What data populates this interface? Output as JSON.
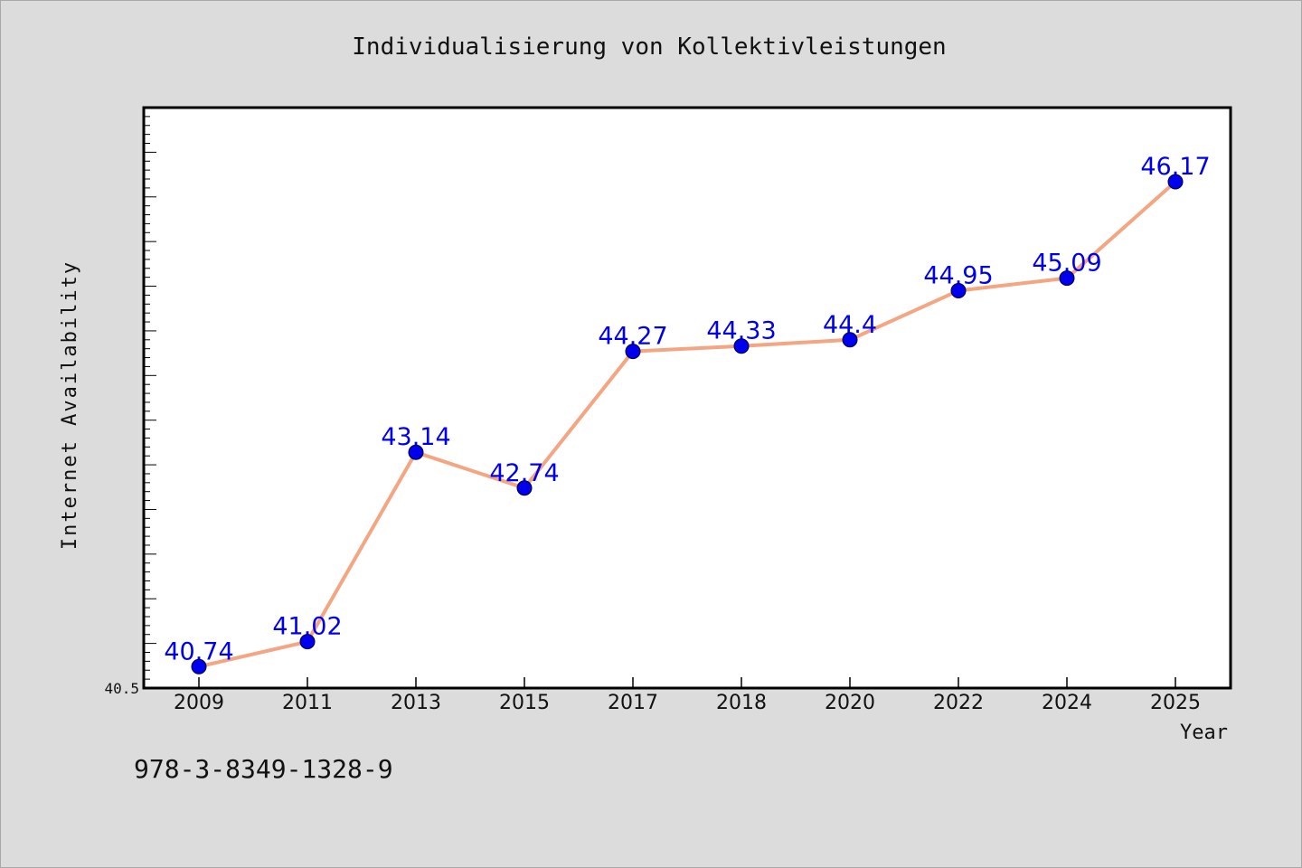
{
  "chart_data": {
    "type": "line",
    "title": "Individualisierung von Kollektivleistungen",
    "xlabel": "Year",
    "ylabel": "Internet Availability",
    "categories": [
      "2009",
      "2011",
      "2013",
      "2015",
      "2017",
      "2018",
      "2020",
      "2022",
      "2024",
      "2025"
    ],
    "series": [
      {
        "values": [
          40.74,
          41.02,
          43.14,
          42.74,
          44.27,
          44.33,
          44.4,
          44.95,
          45.09,
          46.17
        ]
      }
    ],
    "data_labels": [
      "40.74",
      "41.02",
      "43.14",
      "42.74",
      "44.27",
      "44.33",
      "44.4",
      "44.95",
      "45.09",
      "46.17"
    ],
    "y_tick_label": "40.5",
    "ylim": [
      40.5,
      47.0
    ],
    "grid": false,
    "legend": "none",
    "colors": {
      "line": "#f4a582",
      "marker": "#0000ee",
      "data_label": "#0000ee",
      "background": "#dcdcdc",
      "plot_background": "#ffffff"
    }
  },
  "footer": {
    "isbn": "978-3-8349-1328-9"
  }
}
